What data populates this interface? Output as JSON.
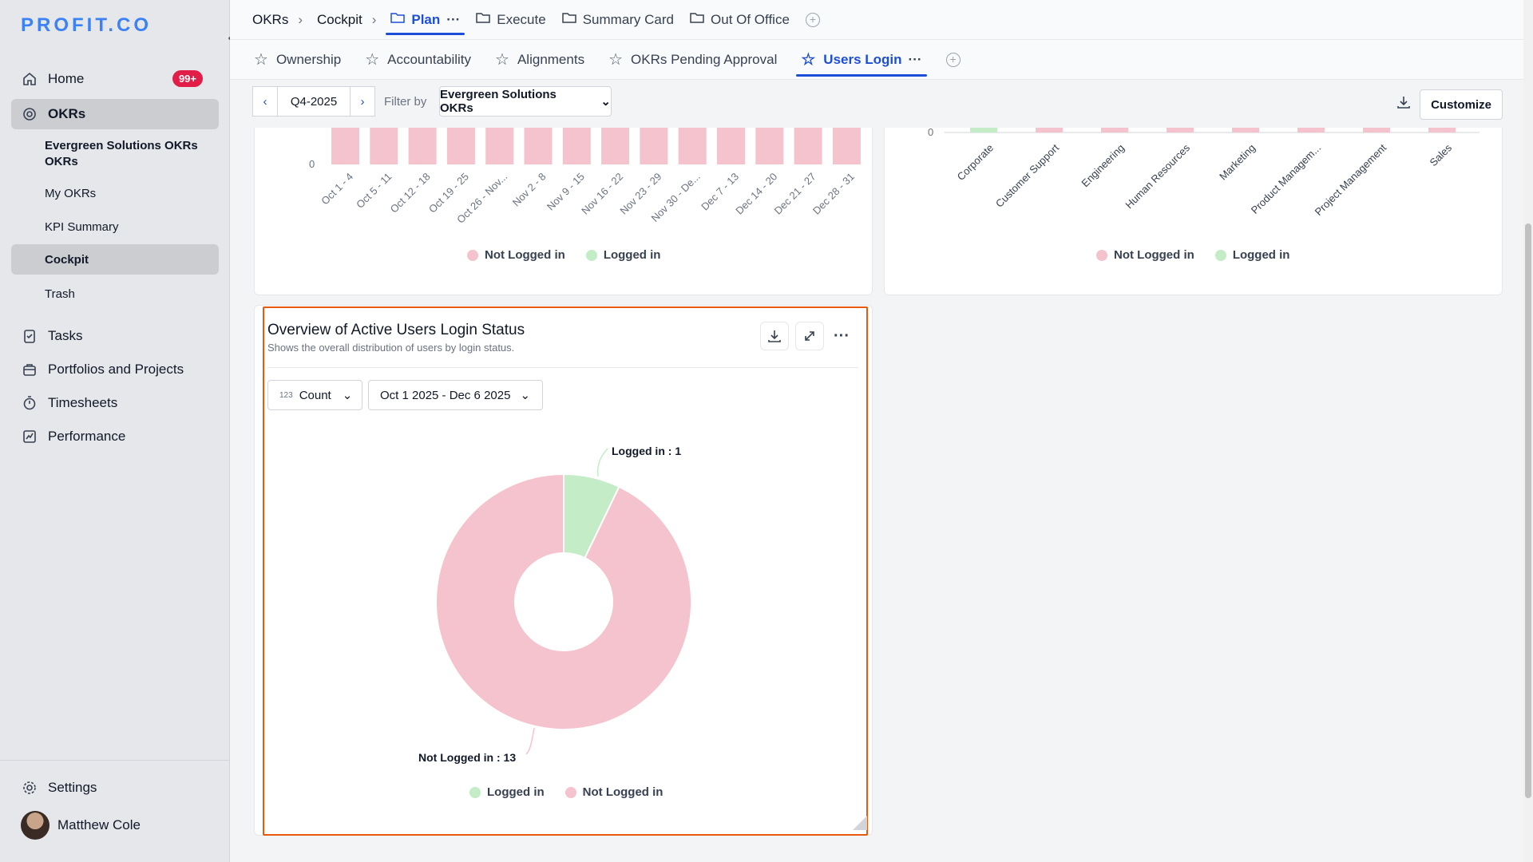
{
  "app": {
    "logo": "PROFIT.CO"
  },
  "sidebar": {
    "home": {
      "label": "Home",
      "badge": "99+"
    },
    "okrs": {
      "label": "OKRs"
    },
    "sub_items": [
      "Evergreen Solutions OKRs OKRs",
      "My OKRs",
      "KPI Summary",
      "Cockpit",
      "Trash"
    ],
    "tasks": "Tasks",
    "portfolios": "Portfolios and Projects",
    "timesheets": "Timesheets",
    "performance": "Performance",
    "settings": "Settings",
    "user": "Matthew Cole"
  },
  "breadcrumb": {
    "okrs": "OKRs",
    "cockpit": "Cockpit",
    "sep": "›"
  },
  "top_tabs": {
    "plan": "Plan",
    "execute": "Execute",
    "summary": "Summary Card",
    "ooo": "Out Of Office"
  },
  "sub_tabs": [
    "Ownership",
    "Accountability",
    "Alignments",
    "OKRs Pending Approval",
    "Users Login"
  ],
  "filter": {
    "period": "Q4-2025",
    "filter_label": "Filter by",
    "filter_value": "Evergreen Solutions OKRs",
    "customize": "Customize"
  },
  "colors": {
    "not_logged": "#f5c3cd",
    "logged": "#c3ecc7",
    "accent": "#1d4ed8",
    "highlight": "#ea580c"
  },
  "top_left_chart": {
    "y_zero": "0",
    "categories": [
      "Oct 1 - 4",
      "Oct 5 - 11",
      "Oct 12 - 18",
      "Oct 19 - 25",
      "Oct 26 - Nov...",
      "Nov 2 - 8",
      "Nov 9 - 15",
      "Nov 16 - 22",
      "Nov 23 - 29",
      "Nov 30 - De...",
      "Dec 7 - 13",
      "Dec 14 - 20",
      "Dec 21 - 27",
      "Dec 28 - 31"
    ],
    "legend": [
      "Not Logged in",
      "Logged in"
    ]
  },
  "top_right_chart": {
    "y_zero": "0",
    "categories": [
      "Corporate",
      "Customer Support",
      "Engineering",
      "Human Resources",
      "Marketing",
      "Product Managem...",
      "Project Management",
      "Sales"
    ],
    "legend": [
      "Not Logged in",
      "Logged in"
    ]
  },
  "overview": {
    "title": "Overview of Active Users Login Status",
    "subtitle": "Shows the overall distribution of users by login status.",
    "metric": "Count",
    "metric_icon_text": "123",
    "date_range": "Oct 1 2025 - Dec 6 2025",
    "label_logged": "Logged in : 1",
    "label_not_logged": "Not Logged in : 13",
    "legend": [
      "Logged in",
      "Not Logged in"
    ]
  },
  "chart_data": {
    "type": "pie",
    "title": "Overview of Active Users Login Status",
    "categories": [
      "Logged in",
      "Not Logged in"
    ],
    "values": [
      1,
      13
    ],
    "legend_position": "bottom"
  }
}
